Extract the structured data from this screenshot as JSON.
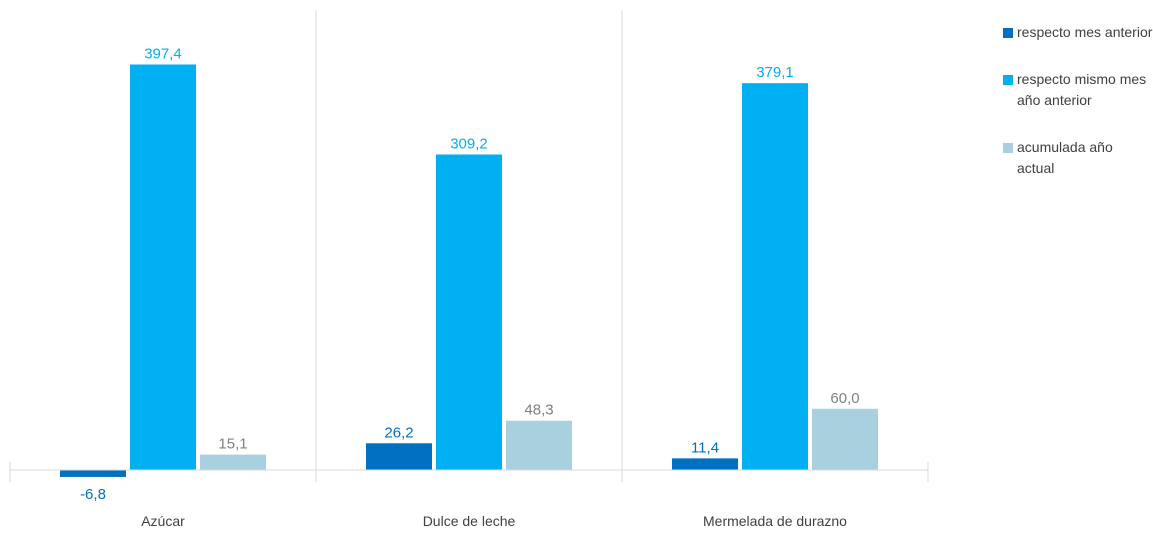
{
  "chart_data": {
    "type": "bar",
    "categories": [
      "Azúcar",
      "Dulce de leche",
      "Mermelada de durazno"
    ],
    "series": [
      {
        "name": "respecto mes anterior",
        "values": [
          -6.8,
          26.2,
          11.4
        ],
        "labels": [
          "-6,8",
          "26,2",
          "11,4"
        ],
        "color": "#0070c0"
      },
      {
        "name": "respecto mismo mes año anterior",
        "values": [
          397.4,
          309.2,
          379.1
        ],
        "labels": [
          "397,4",
          "309,2",
          "379,1"
        ],
        "color": "#00b0f0"
      },
      {
        "name": "acumulada año actual",
        "values": [
          15.1,
          48.3,
          60.0
        ],
        "labels": [
          "15,1",
          "48,3",
          "60,0"
        ],
        "color": "#a9d0de"
      }
    ],
    "ylim": [
      -10,
      420
    ],
    "grid": false,
    "legend_position": "right",
    "category_separators": true,
    "label_colors": [
      "#0070c0",
      "#00b0f0",
      "#808080"
    ]
  },
  "legend": {
    "items": [
      {
        "label": "respecto mes anterior",
        "color": "#0070c0"
      },
      {
        "label": "respecto mismo mes año anterior",
        "color": "#00b0f0"
      },
      {
        "label": "acumulada año actual",
        "color": "#a9d0de"
      }
    ]
  }
}
